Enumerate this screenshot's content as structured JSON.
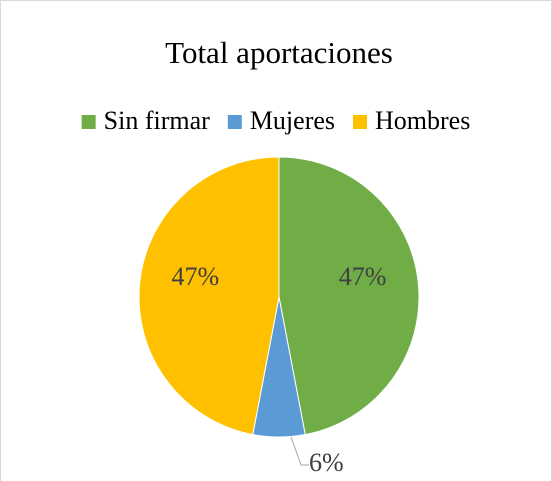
{
  "chart_data": {
    "type": "pie",
    "title": "Total aportaciones",
    "categories": [
      "Sin firmar",
      "Mujeres",
      "Hombres"
    ],
    "values": [
      47,
      6,
      47
    ],
    "value_labels": [
      "47%",
      "6%",
      "47%"
    ],
    "colors": [
      "#70ad47",
      "#5b9bd5",
      "#ffc000"
    ],
    "legend": "top"
  }
}
